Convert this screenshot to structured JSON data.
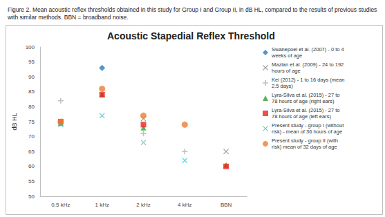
{
  "chart_data": {
    "type": "scatter",
    "caption": "Figure 2. Mean acoustic reflex thresholds obtained in this study for Group I and Group II, in dB HL, compared to the results of previous studies with similar methods. BBN = broadband noise.",
    "title": "Acoustic Stapedial Reflex Threshold",
    "y_label": "dB HL",
    "categories": [
      "0.5 kHz",
      "1 kHz",
      "2 kHz",
      "4 kHz",
      "BBN"
    ],
    "series": [
      {
        "name": "Swanepoel et al. (2007) - 0 to 4 weeks of age",
        "color": "#2A7AC0",
        "marker": "diamond",
        "values": [
          null,
          93,
          null,
          null,
          null
        ]
      },
      {
        "name": "Mazlan et al. (2009) - 24 to 192 hours of age",
        "color": "#7F7F7F",
        "marker": "x",
        "values": [
          null,
          84,
          76,
          null,
          65
        ]
      },
      {
        "name": "Kei (2012) - 1 to 16 days (mean 2.5 days)",
        "color": "#B0B0B0",
        "marker": "plus",
        "values": [
          82,
          null,
          71,
          65,
          null
        ]
      },
      {
        "name": "Lyra-Silva et al. (2015) - 27 to 78 hours of age (right ears)",
        "color": "#33A02C",
        "marker": "triangle",
        "values": [
          74.5,
          84,
          73,
          null,
          60.5
        ]
      },
      {
        "name": "Lyra-Silva et al. (2015) - 27 to 78 hours of age (left ears)",
        "color": "#E8251F",
        "marker": "square",
        "values": [
          75,
          84,
          74,
          null,
          60
        ]
      },
      {
        "name": "Present study - group I (without risk) - mean of 36 hours of age",
        "color": "#40BFC6",
        "marker": "x",
        "values": [
          74,
          77,
          68,
          62,
          null
        ]
      },
      {
        "name": "Present study - group II (with risk) mean of 32 days of age",
        "color": "#ED7D31",
        "marker": "circle",
        "values": [
          75,
          86,
          77,
          74,
          null
        ]
      }
    ],
    "ylim": [
      50,
      100
    ],
    "yticks": [
      50,
      55,
      60,
      65,
      70,
      75,
      80,
      85,
      90,
      95,
      100
    ],
    "grid": false,
    "legend": "right"
  }
}
